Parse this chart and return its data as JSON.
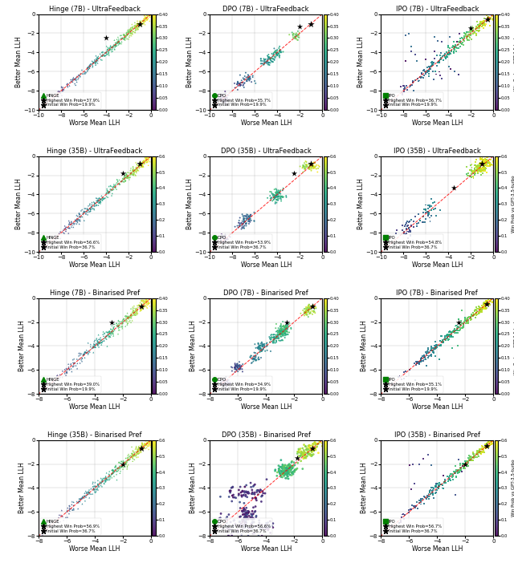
{
  "rows": [
    {
      "algo": "Hinge",
      "size": "7B",
      "dataset": "UltraFeedback",
      "marker": "^",
      "xlim": [
        -10,
        0
      ],
      "ylim": [
        -10,
        0
      ],
      "vmin": 0.0,
      "vmax": 0.4,
      "legend_label": "HINGE",
      "highest_wp": "37.9%",
      "initial_wp": "19.9%",
      "star_high": [
        -1.0,
        -1.0
      ],
      "star_init": [
        -4.0,
        -2.5
      ]
    },
    {
      "algo": "DPO",
      "size": "7B",
      "dataset": "UltraFeedback",
      "marker": "o",
      "xlim": [
        -10,
        0
      ],
      "ylim": [
        -10,
        0
      ],
      "vmin": 0.0,
      "vmax": 0.4,
      "legend_label": "DPO",
      "highest_wp": "35.7%",
      "initial_wp": "19.9%",
      "star_high": [
        -1.0,
        -1.0
      ],
      "star_init": [
        -2.0,
        -1.3
      ]
    },
    {
      "algo": "IPO",
      "size": "7B",
      "dataset": "UltraFeedback",
      "marker": "s",
      "xlim": [
        -10,
        0
      ],
      "ylim": [
        -10,
        0
      ],
      "vmin": 0.0,
      "vmax": 0.4,
      "legend_label": "IPO",
      "highest_wp": "36.7%",
      "initial_wp": "19.9%",
      "star_high": [
        -0.5,
        -0.5
      ],
      "star_init": [
        -2.0,
        -1.5
      ]
    },
    {
      "algo": "Hinge",
      "size": "35B",
      "dataset": "UltraFeedback",
      "marker": "^",
      "xlim": [
        -10,
        0
      ],
      "ylim": [
        -10,
        0
      ],
      "vmin": 0.0,
      "vmax": 0.6,
      "legend_label": "HINGE",
      "highest_wp": "56.6%",
      "initial_wp": "36.7%",
      "star_high": [
        -1.0,
        -0.8
      ],
      "star_init": [
        -2.5,
        -1.8
      ]
    },
    {
      "algo": "DPO",
      "size": "35B",
      "dataset": "UltraFeedback",
      "marker": "o",
      "xlim": [
        -10,
        0
      ],
      "ylim": [
        -10,
        0
      ],
      "vmin": 0.0,
      "vmax": 0.6,
      "legend_label": "DPO",
      "highest_wp": "53.9%",
      "initial_wp": "36.7%",
      "star_high": [
        -1.0,
        -0.8
      ],
      "star_init": [
        -2.5,
        -1.8
      ]
    },
    {
      "algo": "IPO",
      "size": "35B",
      "dataset": "UltraFeedback",
      "marker": "s",
      "xlim": [
        -10,
        0
      ],
      "ylim": [
        -10,
        0
      ],
      "vmin": 0.0,
      "vmax": 0.6,
      "legend_label": "IPO",
      "highest_wp": "54.8%",
      "initial_wp": "36.7%",
      "star_high": [
        -1.0,
        -0.8
      ],
      "star_init": [
        -3.5,
        -3.3
      ]
    },
    {
      "algo": "Hinge",
      "size": "7B",
      "dataset": "Binarised Pref",
      "marker": "^",
      "xlim": [
        -8,
        0
      ],
      "ylim": [
        -8,
        0
      ],
      "vmin": 0.0,
      "vmax": 0.4,
      "legend_label": "HINGE",
      "highest_wp": "39.0%",
      "initial_wp": "19.9%",
      "star_high": [
        -0.7,
        -0.7
      ],
      "star_init": [
        -2.8,
        -2.0
      ]
    },
    {
      "algo": "DPO",
      "size": "7B",
      "dataset": "Binarised Pref",
      "marker": "o",
      "xlim": [
        -8,
        0
      ],
      "ylim": [
        -8,
        0
      ],
      "vmin": 0.0,
      "vmax": 0.4,
      "legend_label": "DPO",
      "highest_wp": "34.9%",
      "initial_wp": "19.9%",
      "star_high": [
        -0.7,
        -0.7
      ],
      "star_init": [
        -2.5,
        -2.0
      ]
    },
    {
      "algo": "IPO",
      "size": "7B",
      "dataset": "Binarised Pref",
      "marker": "s",
      "xlim": [
        -8,
        0
      ],
      "ylim": [
        -8,
        0
      ],
      "vmin": 0.0,
      "vmax": 0.4,
      "legend_label": "IPO",
      "highest_wp": "35.1%",
      "initial_wp": "19.9%",
      "star_high": [
        -0.5,
        -0.5
      ],
      "star_init": [
        -2.5,
        -2.0
      ]
    },
    {
      "algo": "Hinge",
      "size": "35B",
      "dataset": "Binarised Pref",
      "marker": "^",
      "xlim": [
        -8,
        0
      ],
      "ylim": [
        -8,
        0
      ],
      "vmin": 0.0,
      "vmax": 0.6,
      "legend_label": "HINGE",
      "highest_wp": "56.9%",
      "initial_wp": "36.7%",
      "star_high": [
        -0.7,
        -0.7
      ],
      "star_init": [
        -2.0,
        -2.0
      ]
    },
    {
      "algo": "DPO",
      "size": "35B",
      "dataset": "Binarised Pref",
      "marker": "o",
      "xlim": [
        -8,
        0
      ],
      "ylim": [
        -8,
        0
      ],
      "vmin": 0.0,
      "vmax": 0.6,
      "legend_label": "DPO",
      "highest_wp": "56.6%",
      "initial_wp": "36.7%",
      "star_high": [
        -0.7,
        -0.7
      ],
      "star_init": [
        -1.8,
        -1.5
      ]
    },
    {
      "algo": "IPO",
      "size": "35B",
      "dataset": "Binarised Pref",
      "marker": "s",
      "xlim": [
        -8,
        0
      ],
      "ylim": [
        -8,
        0
      ],
      "vmin": 0.0,
      "vmax": 0.6,
      "legend_label": "IPO",
      "highest_wp": "56.7%",
      "initial_wp": "36.7%",
      "star_high": [
        -0.5,
        -0.5
      ],
      "star_init": [
        -2.0,
        -2.0
      ]
    }
  ],
  "cmap": "viridis",
  "cbar_label": "Win Prob vs GPT-3.5-turbo"
}
